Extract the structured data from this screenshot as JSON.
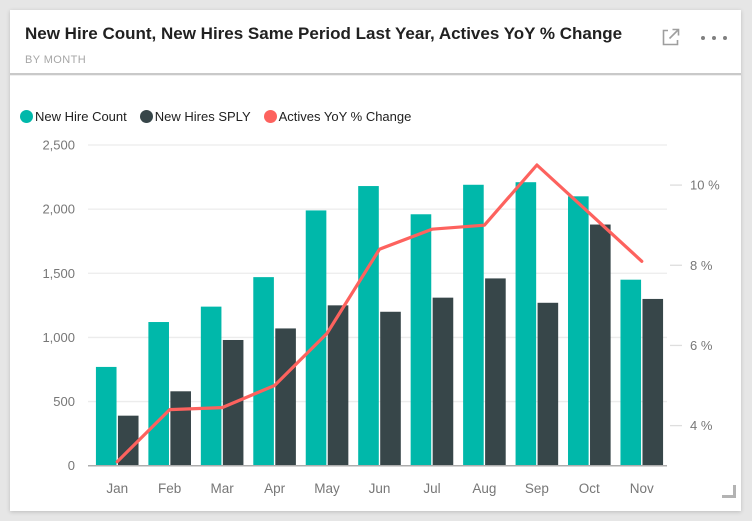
{
  "header": {
    "title": "New Hire Count, New Hires Same Period Last Year, Actives YoY % Change",
    "subtitle": "BY MONTH",
    "focus_icon": "focus-mode-icon",
    "more_icon": "more-options-icon"
  },
  "legend": {
    "items": [
      {
        "label": "New Hire Count",
        "color": "#00B8AA"
      },
      {
        "label": "New Hires SPLY",
        "color": "#374649"
      },
      {
        "label": "Actives YoY % Change",
        "color": "#FD625E"
      }
    ]
  },
  "chart_data": {
    "type": "combo-bar-line",
    "title": "New Hire Count, New Hires Same Period Last Year, Actives YoY % Change by Month",
    "categories": [
      "Jan",
      "Feb",
      "Mar",
      "Apr",
      "May",
      "Jun",
      "Jul",
      "Aug",
      "Sep",
      "Oct",
      "Nov"
    ],
    "series": [
      {
        "name": "New Hire Count",
        "type": "bar",
        "axis": "left",
        "color": "#00B8AA",
        "values": [
          770,
          1120,
          1240,
          1470,
          1990,
          2180,
          1960,
          2190,
          2210,
          2100,
          1450
        ]
      },
      {
        "name": "New Hires SPLY",
        "type": "bar",
        "axis": "left",
        "color": "#374649",
        "values": [
          390,
          580,
          980,
          1070,
          1250,
          1200,
          1310,
          1460,
          1270,
          1880,
          1300
        ]
      },
      {
        "name": "Actives YoY % Change",
        "type": "line",
        "axis": "right",
        "color": "#FD625E",
        "values": [
          3.1,
          4.4,
          4.45,
          5.0,
          6.3,
          8.4,
          8.9,
          9.0,
          10.5,
          9.3,
          8.1
        ]
      }
    ],
    "left_axis": {
      "min": 0,
      "max": 2500,
      "tick_step": 500,
      "tick_labels": [
        "0",
        "500",
        "1,000",
        "1,500",
        "2,000",
        "2,500"
      ]
    },
    "right_axis": {
      "min": 3,
      "max": 11,
      "ticks": [
        4,
        6,
        8,
        10
      ],
      "tick_labels": [
        "4 %",
        "6 %",
        "8 %",
        "10 %"
      ]
    },
    "grid": true,
    "legend_position": "top"
  },
  "colors": {
    "page_background": "#E6E6E6",
    "card_background": "#FFFFFF",
    "gridline": "#ECECEC",
    "baseline": "#ADADAD",
    "secondary_tick": "#DEDEDE",
    "axis_text": "#777777",
    "title_text": "#212121",
    "subtitle_text": "#A6A6A6"
  },
  "misc": {
    "resize_handle": "resize-handle-icon"
  }
}
